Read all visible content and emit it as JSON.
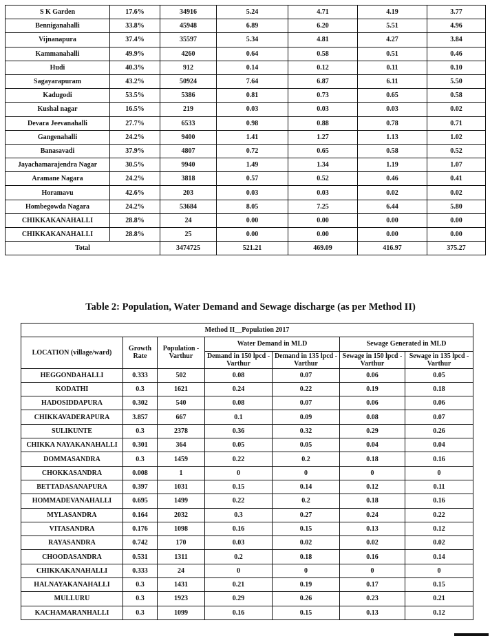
{
  "table1": {
    "rows": [
      [
        "S K Garden",
        "17.6%",
        "34916",
        "5.24",
        "4.71",
        "4.19",
        "3.77"
      ],
      [
        "Benniganahalli",
        "33.8%",
        "45948",
        "6.89",
        "6.20",
        "5.51",
        "4.96"
      ],
      [
        "Vijnanapura",
        "37.4%",
        "35597",
        "5.34",
        "4.81",
        "4.27",
        "3.84"
      ],
      [
        "Kammanahalli",
        "49.9%",
        "4260",
        "0.64",
        "0.58",
        "0.51",
        "0.46"
      ],
      [
        "Hudi",
        "40.3%",
        "912",
        "0.14",
        "0.12",
        "0.11",
        "0.10"
      ],
      [
        "Sagayarapuram",
        "43.2%",
        "50924",
        "7.64",
        "6.87",
        "6.11",
        "5.50"
      ],
      [
        "Kadugodi",
        "53.5%",
        "5386",
        "0.81",
        "0.73",
        "0.65",
        "0.58"
      ],
      [
        "Kushal nagar",
        "16.5%",
        "219",
        "0.03",
        "0.03",
        "0.03",
        "0.02"
      ],
      [
        "Devara Jeevanahalli",
        "27.7%",
        "6533",
        "0.98",
        "0.88",
        "0.78",
        "0.71"
      ],
      [
        "Gangenahalli",
        "24.2%",
        "9400",
        "1.41",
        "1.27",
        "1.13",
        "1.02"
      ],
      [
        "Banasavadi",
        "37.9%",
        "4807",
        "0.72",
        "0.65",
        "0.58",
        "0.52"
      ],
      [
        "Jayachamarajendra Nagar",
        "30.5%",
        "9940",
        "1.49",
        "1.34",
        "1.19",
        "1.07"
      ],
      [
        "Aramane Nagara",
        "24.2%",
        "3818",
        "0.57",
        "0.52",
        "0.46",
        "0.41"
      ],
      [
        "Horamavu",
        "42.6%",
        "203",
        "0.03",
        "0.03",
        "0.02",
        "0.02"
      ],
      [
        "Hombegowda Nagara",
        "24.2%",
        "53684",
        "8.05",
        "7.25",
        "6.44",
        "5.80"
      ],
      [
        "CHIKKAKANAHALLI",
        "28.8%",
        "24",
        "0.00",
        "0.00",
        "0.00",
        "0.00"
      ],
      [
        "CHIKKAKANAHALLI",
        "28.8%",
        "25",
        "0.00",
        "0.00",
        "0.00",
        "0.00"
      ]
    ],
    "total": {
      "label": "Total",
      "values": [
        "3474725",
        "521.21",
        "469.09",
        "416.97",
        "375.27"
      ]
    }
  },
  "table2": {
    "title": "Table 2: Population, Water Demand and Sewage discharge (as per Method II)",
    "method_header": "Method II__Population 2017",
    "col_location": "LOCATION (village/ward)",
    "col_growth": "Growth Rate",
    "col_population": "Population - Varthur",
    "group_water": "Water Demand in MLD",
    "group_sewage": "Sewage Generated in MLD",
    "sub_headers": [
      "Demand in 150 lpcd - Varthur",
      "Demand in 135 lpcd - Varthur",
      "Sewage in 150 lpcd - Varthur",
      "Sewage in 135 lpcd - Varthur"
    ],
    "rows": [
      [
        "HEGGONDAHALLI",
        "0.333",
        "502",
        "0.08",
        "0.07",
        "0.06",
        "0.05"
      ],
      [
        "KODATHI",
        "0.3",
        "1621",
        "0.24",
        "0.22",
        "0.19",
        "0.18"
      ],
      [
        "HADOSIDDAPURA",
        "0.302",
        "540",
        "0.08",
        "0.07",
        "0.06",
        "0.06"
      ],
      [
        "CHIKKAVADERAPURA",
        "3.857",
        "667",
        "0.1",
        "0.09",
        "0.08",
        "0.07"
      ],
      [
        "SULIKUNTE",
        "0.3",
        "2378",
        "0.36",
        "0.32",
        "0.29",
        "0.26"
      ],
      [
        "CHIKKA NAYAKANAHALLI",
        "0.301",
        "364",
        "0.05",
        "0.05",
        "0.04",
        "0.04"
      ],
      [
        "DOMMASANDRA",
        "0.3",
        "1459",
        "0.22",
        "0.2",
        "0.18",
        "0.16"
      ],
      [
        "CHOKKASANDRA",
        "0.008",
        "1",
        "0",
        "0",
        "0",
        "0"
      ],
      [
        "BETTADASANAPURA",
        "0.397",
        "1031",
        "0.15",
        "0.14",
        "0.12",
        "0.11"
      ],
      [
        "HOMMADEVANAHALLI",
        "0.695",
        "1499",
        "0.22",
        "0.2",
        "0.18",
        "0.16"
      ],
      [
        "MYLASANDRA",
        "0.164",
        "2032",
        "0.3",
        "0.27",
        "0.24",
        "0.22"
      ],
      [
        "VITASANDRA",
        "0.176",
        "1098",
        "0.16",
        "0.15",
        "0.13",
        "0.12"
      ],
      [
        "RAYASANDRA",
        "0.742",
        "170",
        "0.03",
        "0.02",
        "0.02",
        "0.02"
      ],
      [
        "CHOODASANDRA",
        "0.531",
        "1311",
        "0.2",
        "0.18",
        "0.16",
        "0.14"
      ],
      [
        "CHIKKAKANAHALLI",
        "0.333",
        "24",
        "0",
        "0",
        "0",
        "0"
      ],
      [
        "HALNAYAKANAHALLI",
        "0.3",
        "1431",
        "0.21",
        "0.19",
        "0.17",
        "0.15"
      ],
      [
        "MULLURU",
        "0.3",
        "1923",
        "0.29",
        "0.26",
        "0.23",
        "0.21"
      ],
      [
        "KACHAMARANHALLI",
        "0.3",
        "1099",
        "0.16",
        "0.15",
        "0.13",
        "0.12"
      ]
    ]
  }
}
